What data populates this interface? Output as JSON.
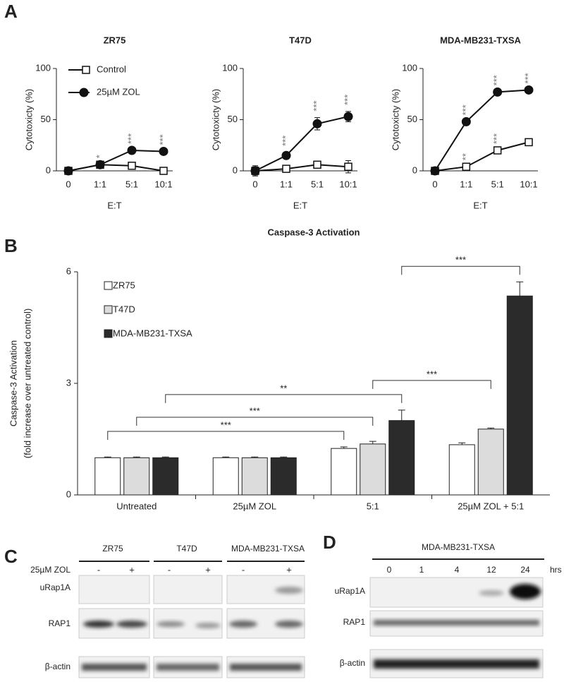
{
  "panel_labels": [
    "A",
    "B",
    "C",
    "D"
  ],
  "chart_data": [
    {
      "type": "line",
      "title": "ZR75",
      "y_label": "Cytotoxicty (%)",
      "x_label": "E:T",
      "categories": [
        "0",
        "1:1",
        "5:1",
        "10:1"
      ],
      "ylim": [
        0,
        100
      ],
      "yticks": [
        0,
        50,
        100
      ],
      "legend": "upper left",
      "series": [
        {
          "name": "Control",
          "marker": "square",
          "color": "#ffffff",
          "values": [
            0,
            6,
            5,
            0
          ]
        },
        {
          "name": "25µM ZOL",
          "marker": "circle",
          "color": "#111111",
          "values": [
            0,
            6,
            20,
            19
          ],
          "significance": [
            null,
            "*",
            "***",
            "***"
          ]
        }
      ]
    },
    {
      "type": "line",
      "title": "T47D",
      "y_label": "Cytotoxicty (%)",
      "x_label": "E:T",
      "categories": [
        "0",
        "1:1",
        "5:1",
        "10:1"
      ],
      "ylim": [
        0,
        100
      ],
      "yticks": [
        0,
        50,
        100
      ],
      "series": [
        {
          "marker": "square",
          "color": "#ffffff",
          "values": [
            0,
            2,
            6,
            4
          ],
          "errors": [
            5,
            1,
            2,
            6
          ]
        },
        {
          "marker": "circle",
          "color": "#111111",
          "values": [
            0,
            15,
            46,
            53
          ],
          "errors": [
            4,
            3,
            6,
            5
          ],
          "significance": [
            null,
            "***",
            "***",
            "***"
          ]
        }
      ]
    },
    {
      "type": "line",
      "title": "MDA-MB231-TXSA",
      "y_label": "Cytotoxicty (%)",
      "x_label": "E:T",
      "categories": [
        "0",
        "1:1",
        "5:1",
        "10:1"
      ],
      "ylim": [
        0,
        100
      ],
      "yticks": [
        0,
        50,
        100
      ],
      "series": [
        {
          "marker": "square",
          "color": "#ffffff",
          "values": [
            0,
            4,
            20,
            28
          ],
          "significance": [
            null,
            "**",
            "***",
            null
          ]
        },
        {
          "marker": "circle",
          "color": "#111111",
          "values": [
            0,
            48,
            77,
            79
          ],
          "significance": [
            null,
            "***",
            "***",
            "***"
          ]
        }
      ]
    },
    {
      "type": "bar",
      "title": "Caspase-3 Activation",
      "y_label": [
        "Caspase-3 Activation",
        "(fold increase over untreated control)"
      ],
      "categories": [
        "Untreated",
        "25µM ZOL",
        "5:1",
        "25µM ZOL + 5:1"
      ],
      "ylim": [
        0,
        6
      ],
      "yticks": [
        0,
        3,
        6
      ],
      "legend": "upper left",
      "series": [
        {
          "name": "ZR75",
          "color": "#ffffff",
          "values": [
            1,
            1,
            1.25,
            1.35
          ],
          "errors": [
            0.02,
            0.02,
            0.04,
            0.05
          ]
        },
        {
          "name": "T47D",
          "color": "#dcdcdc",
          "values": [
            1,
            1,
            1.37,
            1.77
          ],
          "errors": [
            0.02,
            0.02,
            0.07,
            0.03
          ]
        },
        {
          "name": "MDA-MB231-TXSA",
          "color": "#2b2b2b",
          "values": [
            1,
            1,
            2.0,
            5.35
          ],
          "errors": [
            0.02,
            0.02,
            0.28,
            0.38
          ]
        }
      ],
      "brackets": [
        {
          "from": [
            0,
            0
          ],
          "to": [
            2,
            0
          ],
          "label": "***"
        },
        {
          "from": [
            0,
            1
          ],
          "to": [
            2,
            1
          ],
          "label": "***"
        },
        {
          "from": [
            0,
            2
          ],
          "to": [
            2,
            2
          ],
          "label": "**"
        },
        {
          "from": [
            2,
            1
          ],
          "to": [
            3,
            1
          ],
          "label": "***"
        },
        {
          "from": [
            2,
            2
          ],
          "to": [
            3,
            2
          ],
          "label": "***"
        }
      ]
    }
  ],
  "blot_c": {
    "columns": [
      "ZR75",
      "T47D",
      "MDA-MB231-TXSA"
    ],
    "treatment": "25µM ZOL",
    "signs": [
      "-",
      "+",
      "-",
      "+",
      "-",
      "+"
    ],
    "rows": [
      "uRap1A",
      "RAP1",
      "β-actin"
    ]
  },
  "blot_d": {
    "header": "MDA-MB231-TXSA",
    "times": [
      "0",
      "1",
      "4",
      "12",
      "24"
    ],
    "unit": "hrs",
    "rows": [
      "uRap1A",
      "RAP1",
      "β-actin"
    ]
  }
}
